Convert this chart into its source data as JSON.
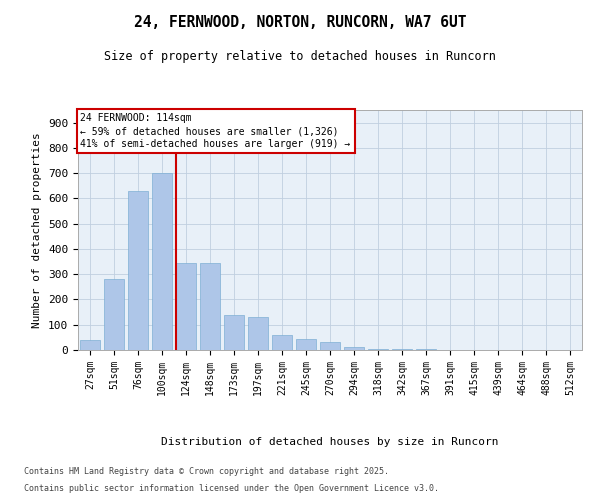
{
  "title": "24, FERNWOOD, NORTON, RUNCORN, WA7 6UT",
  "subtitle": "Size of property relative to detached houses in Runcorn",
  "xlabel": "Distribution of detached houses by size in Runcorn",
  "ylabel": "Number of detached properties",
  "categories": [
    "27sqm",
    "51sqm",
    "76sqm",
    "100sqm",
    "124sqm",
    "148sqm",
    "173sqm",
    "197sqm",
    "221sqm",
    "245sqm",
    "270sqm",
    "294sqm",
    "318sqm",
    "342sqm",
    "367sqm",
    "391sqm",
    "415sqm",
    "439sqm",
    "464sqm",
    "488sqm",
    "512sqm"
  ],
  "values": [
    40,
    280,
    630,
    700,
    345,
    345,
    140,
    130,
    60,
    45,
    30,
    10,
    5,
    3,
    2,
    1,
    1,
    0,
    0,
    0,
    1
  ],
  "bar_color": "#aec6e8",
  "bar_edgecolor": "#7eafd4",
  "ylim": [
    0,
    950
  ],
  "yticks": [
    0,
    100,
    200,
    300,
    400,
    500,
    600,
    700,
    800,
    900
  ],
  "property_label": "24 FERNWOOD: 114sqm",
  "annotation_line1": "← 59% of detached houses are smaller (1,326)",
  "annotation_line2": "41% of semi-detached houses are larger (919) →",
  "annotation_box_color": "#ffffff",
  "annotation_box_edgecolor": "#cc0000",
  "vline_color": "#cc0000",
  "background_color": "#e8f0f8",
  "footer_line1": "Contains HM Land Registry data © Crown copyright and database right 2025.",
  "footer_line2": "Contains public sector information licensed under the Open Government Licence v3.0."
}
